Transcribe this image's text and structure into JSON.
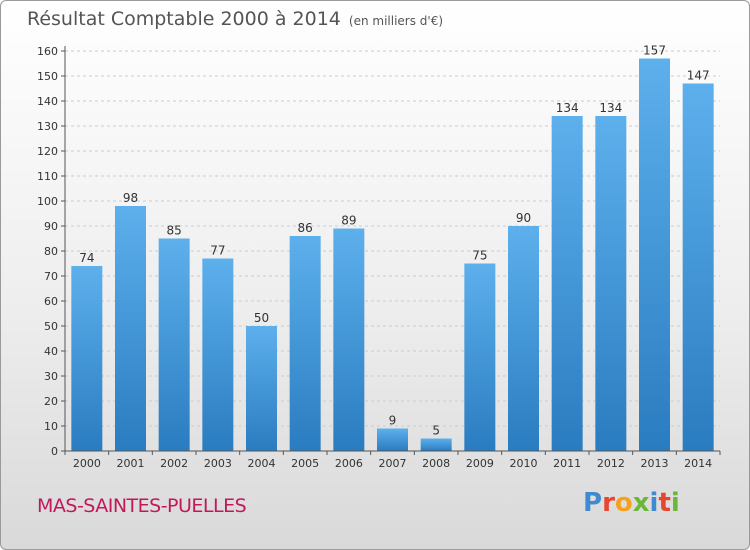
{
  "title": "Résultat Comptable 2000 à 2014",
  "unit": "(en milliers d'€)",
  "town": "MAS-SAINTES-PUELLES",
  "brand": {
    "letters": [
      "P",
      "r",
      "o",
      "x",
      "i",
      "t",
      "i"
    ],
    "colors": [
      "#3f8ad1",
      "#e6452f",
      "#f4a21e",
      "#6bb736",
      "#3f8ad1",
      "#e6452f",
      "#6bb736"
    ]
  },
  "colors": {
    "bar_light": "#5db0ec",
    "bar_dark": "#2a7cc0",
    "grid": "#cccccc",
    "axis": "#555555"
  },
  "chart_data": {
    "type": "bar",
    "title": "Résultat Comptable 2000 à 2014",
    "subtitle": "(en milliers d'€)",
    "categories": [
      "2000",
      "2001",
      "2002",
      "2003",
      "2004",
      "2005",
      "2006",
      "2007",
      "2008",
      "2009",
      "2010",
      "2011",
      "2012",
      "2013",
      "2014"
    ],
    "values": [
      74,
      98,
      85,
      77,
      50,
      86,
      89,
      9,
      5,
      75,
      90,
      134,
      134,
      157,
      147
    ],
    "yticks": [
      0,
      10,
      20,
      30,
      40,
      50,
      60,
      70,
      80,
      90,
      100,
      110,
      120,
      130,
      140,
      150,
      160
    ],
    "ylim": [
      0,
      160
    ],
    "xlabel": "",
    "ylabel": "",
    "grid": true
  }
}
